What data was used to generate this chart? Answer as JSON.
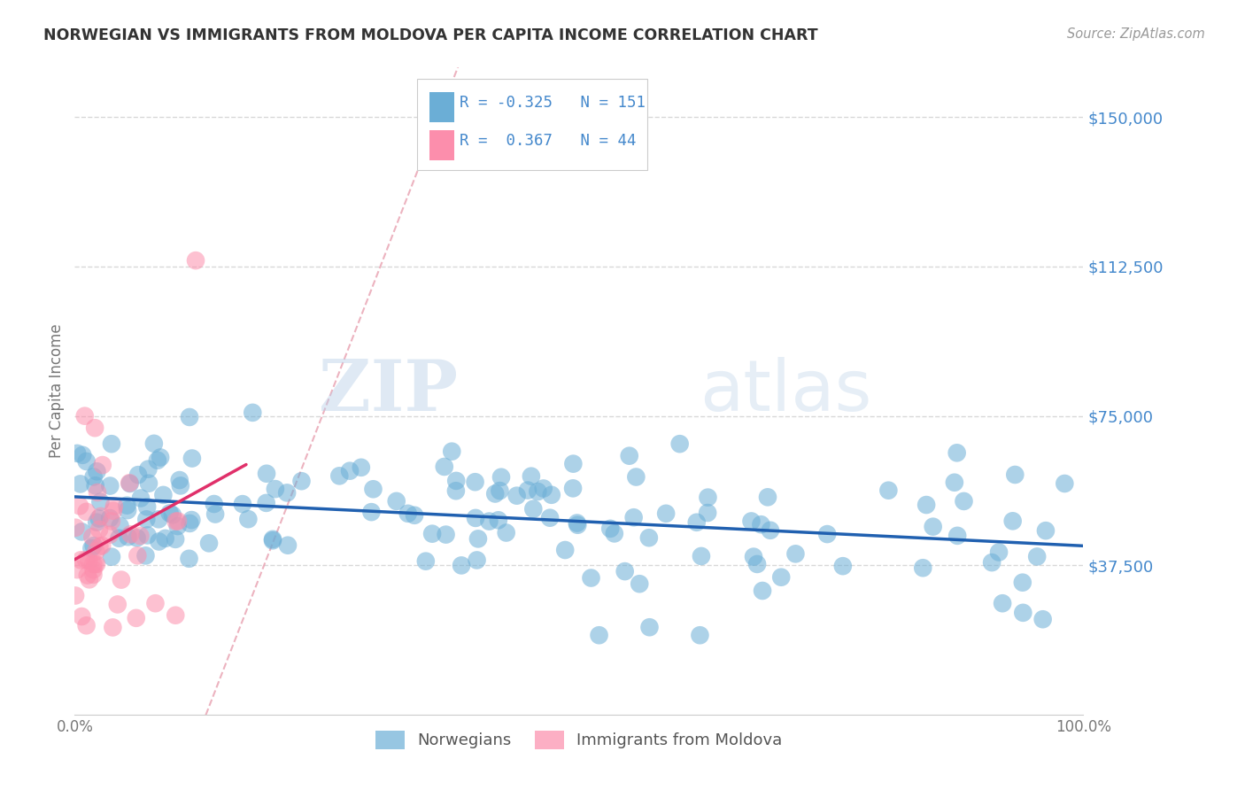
{
  "title": "NORWEGIAN VS IMMIGRANTS FROM MOLDOVA PER CAPITA INCOME CORRELATION CHART",
  "source": "Source: ZipAtlas.com",
  "ylabel": "Per Capita Income",
  "ytick_labels": [
    "$37,500",
    "$75,000",
    "$112,500",
    "$150,000"
  ],
  "ytick_values": [
    37500,
    75000,
    112500,
    150000
  ],
  "ymin": 0,
  "ymax": 162500,
  "xmin": 0.0,
  "xmax": 1.0,
  "blue_color": "#6baed6",
  "pink_color": "#fc8eac",
  "blue_line_color": "#2060b0",
  "pink_line_color": "#e0306a",
  "diag_color": "#e8a0b0",
  "watermark_color": "#c8dff0",
  "background_color": "#ffffff",
  "grid_color": "#d8d8d8",
  "title_color": "#333333",
  "source_color": "#999999",
  "ytick_color": "#4488cc",
  "label_color": "#777777"
}
